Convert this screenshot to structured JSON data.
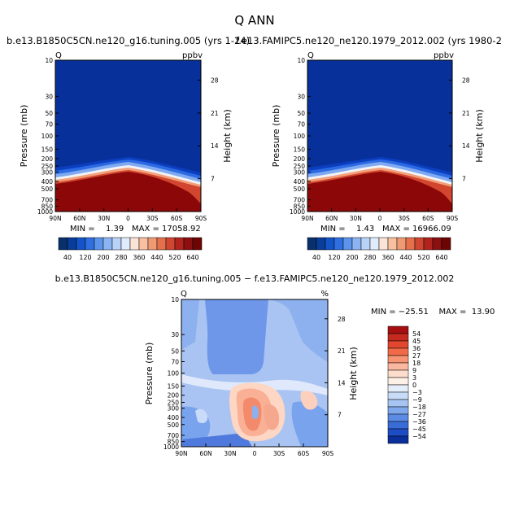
{
  "figure": {
    "title": "Q ANN",
    "panel_left_title": "b.e13.B1850C5CN.ne120_g16.tuning.005 (yrs 1-24)",
    "panel_right_title": "f.e13.FAMIPC5.ne120_ne120.1979_2012.002 (yrs 1980-2",
    "panel_diff_title": "b.e13.B1850C5CN.ne120_g16.tuning.005 − f.e13.FAMIPC5.ne120_ne120.1979_2012.002"
  },
  "chart_data": [
    {
      "type": "heatmap",
      "id": "left",
      "variable": "Q",
      "units": "ppbv",
      "xlabel": "",
      "ylabel": "Pressure (mb)",
      "ylabel_right": "Height (km)",
      "x_ticks": [
        "90N",
        "60N",
        "30N",
        "0",
        "30S",
        "60S",
        "90S"
      ],
      "y_ticks": [
        10,
        30,
        50,
        70,
        100,
        150,
        200,
        250,
        300,
        400,
        500,
        700,
        850,
        1000
      ],
      "height_ticks": [
        7,
        14,
        21,
        28
      ],
      "min_label": "MIN =",
      "min_value": "1.39",
      "max_label": "MAX = 17058.92",
      "colorbar_ticks": [
        "40",
        "120",
        "200",
        "280",
        "360",
        "440",
        "520",
        "640"
      ],
      "colorbar_colors": [
        "#08306b",
        "#083d9a",
        "#1454c9",
        "#2f6fe0",
        "#5c94ec",
        "#8cb3f2",
        "#b9d2f7",
        "#e0ecfb",
        "#fbe3d6",
        "#f8c0a0",
        "#f09a73",
        "#e4704c",
        "#cf4631",
        "#b0241d",
        "#8c1010",
        "#6e0505"
      ]
    },
    {
      "type": "heatmap",
      "id": "right",
      "variable": "Q",
      "units": "ppbv",
      "xlabel": "",
      "ylabel": "Pressure (mb)",
      "ylabel_right": "Height (km)",
      "x_ticks": [
        "90N",
        "60N",
        "30N",
        "0",
        "30S",
        "60S",
        "90S"
      ],
      "y_ticks": [
        10,
        30,
        50,
        70,
        100,
        150,
        200,
        250,
        300,
        400,
        500,
        700,
        850,
        1000
      ],
      "height_ticks": [
        7,
        14,
        21,
        28
      ],
      "min_label": "MIN =",
      "min_value": "1.43",
      "max_label": "MAX = 16966.09",
      "colorbar_ticks": [
        "40",
        "120",
        "200",
        "280",
        "360",
        "440",
        "520",
        "640"
      ],
      "colorbar_colors": [
        "#08306b",
        "#083d9a",
        "#1454c9",
        "#2f6fe0",
        "#5c94ec",
        "#8cb3f2",
        "#b9d2f7",
        "#e0ecfb",
        "#fbe3d6",
        "#f8c0a0",
        "#f09a73",
        "#e4704c",
        "#cf4631",
        "#b0241d",
        "#8c1010",
        "#6e0505"
      ]
    },
    {
      "type": "heatmap",
      "id": "diff",
      "variable": "Q",
      "units": "%",
      "xlabel": "",
      "ylabel": "Pressure (mb)",
      "ylabel_right": "Height (km)",
      "x_ticks": [
        "90N",
        "60N",
        "30N",
        "0",
        "30S",
        "60S",
        "90S"
      ],
      "y_ticks": [
        10,
        30,
        50,
        70,
        100,
        150,
        200,
        250,
        300,
        400,
        500,
        700,
        850,
        1000
      ],
      "height_ticks": [
        7,
        14,
        21,
        28
      ],
      "min_max_label": "MIN = −25.51    MAX =  13.90",
      "colorbar_ticks": [
        "54",
        "45",
        "36",
        "27",
        "18",
        "9",
        "3",
        "0",
        "−3",
        "−9",
        "−18",
        "−27",
        "−36",
        "−45",
        "−54"
      ],
      "colorbar_colors": [
        "#a50f0f",
        "#c52a1e",
        "#e0472e",
        "#f06a48",
        "#f79473",
        "#fbb8a0",
        "#fddccb",
        "#fdf0e6",
        "#e4eefb",
        "#c8dcf7",
        "#a6c5f2",
        "#80a9ec",
        "#5b8be4",
        "#3a6cd8",
        "#1e4cc4",
        "#0a2e9a"
      ]
    }
  ]
}
